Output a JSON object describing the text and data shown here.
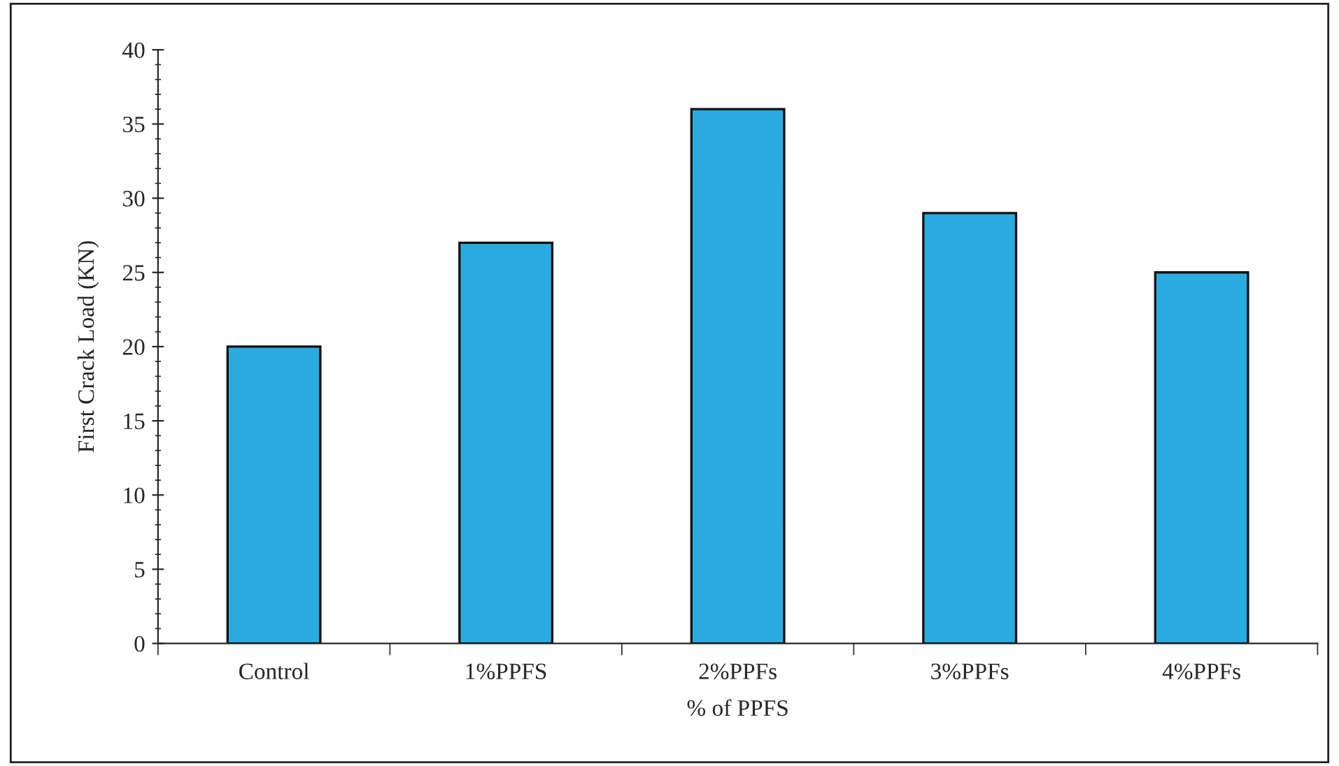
{
  "chart_data": {
    "type": "bar",
    "xlabel": "% of PPFS",
    "ylabel": "First Crack Load (KN)",
    "categories": [
      "Control",
      "1%PPFS",
      "2%PPFs",
      "3%PPFs",
      "4%PPFs"
    ],
    "values": [
      20,
      27,
      36,
      29,
      25
    ],
    "color": "#29abe2",
    "ylim": [
      0,
      40
    ],
    "yticks": [
      0,
      5,
      10,
      15,
      20,
      25,
      30,
      35,
      40
    ],
    "grid": false
  }
}
